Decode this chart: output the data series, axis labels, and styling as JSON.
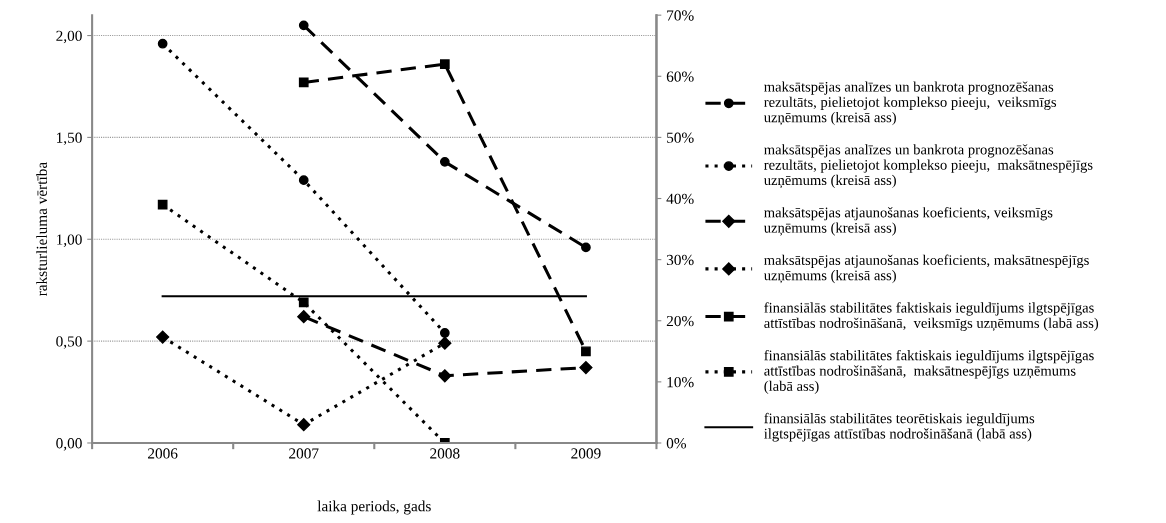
{
  "chart_data": {
    "type": "line",
    "xlabel": "laika periods, gads",
    "ylabel": "raksturlieluma vērtība",
    "categories": [
      "2006",
      "2007",
      "2008",
      "2009"
    ],
    "ylim": [
      0,
      2.1
    ],
    "yticks": [
      {
        "value": 0,
        "label": "0,00"
      },
      {
        "value": 0.5,
        "label": "0,50"
      },
      {
        "value": 1,
        "label": "1,00"
      },
      {
        "value": 1.5,
        "label": "1,50"
      },
      {
        "value": 2,
        "label": "2,00"
      }
    ],
    "y2lim": [
      0,
      70
    ],
    "y2ticks": [
      {
        "value": 0,
        "label": "0%"
      },
      {
        "value": 10,
        "label": "10%"
      },
      {
        "value": 20,
        "label": "20%"
      },
      {
        "value": 30,
        "label": "30%"
      },
      {
        "value": 40,
        "label": "40%"
      },
      {
        "value": 50,
        "label": "50%"
      },
      {
        "value": 60,
        "label": "60%"
      },
      {
        "value": 70,
        "label": "70%"
      }
    ],
    "grid": "y",
    "legend": "right",
    "series": [
      {
        "name": "maksātspējas analīzes un bankrota prognozēšanas\nrezultāts, pielietojot komplekso pieeju,  veiksmīgs\nuzņēmums (kreisā ass)",
        "color": "#000000",
        "marker": "circle",
        "line_style": "dashed",
        "values": [
          null,
          2.05,
          1.38,
          0.96
        ]
      },
      {
        "name": "maksātspējas analīzes un bankrota prognozēšanas\nrezultāts, pielietojot komplekso pieeju,  maksātnespējīgs\nuzņēmums (kreisā ass)",
        "color": "#000000",
        "marker": "circle",
        "line_style": "dotted",
        "values": [
          1.96,
          1.29,
          0.54,
          null
        ]
      },
      {
        "name": "maksātspējas atjaunošanas koeficients, veiksmīgs\nuzņēmums (kreisā ass)",
        "color": "#000000",
        "marker": "diamond",
        "line_style": "dashed",
        "values": [
          null,
          0.62,
          0.33,
          0.37
        ]
      },
      {
        "name": "maksātspējas atjaunošanas koeficients, maksātnespējīgs\nuzņēmums (kreisā ass)",
        "color": "#000000",
        "marker": "diamond",
        "line_style": "dotted",
        "values": [
          0.52,
          0.09,
          0.49,
          null
        ]
      },
      {
        "name": "finansiālās stabilitātes faktiskais ieguldījums ilgtspējīgas\nattīstības nodrošināšanā,  veiksmīgs uzņēmums (labā ass)",
        "color": "#000000",
        "marker": "square",
        "line_style": "dashed",
        "axis": "y2",
        "values": [
          null,
          59,
          62,
          15
        ]
      },
      {
        "name": "finansiālās stabilitātes faktiskais ieguldījums ilgtspējīgas\nattīstības nodrošināšanā,  maksātnespējīgs uzņēmums\n(labā ass)",
        "color": "#000000",
        "marker": "square",
        "line_style": "dotted",
        "axis": "y2",
        "values": [
          39,
          23,
          0,
          null
        ]
      },
      {
        "name": "finansiālās stabilitātes teorētiskais ieguldījums\nilgtspējīgas attīstības nodrošināšanā (labā ass)",
        "color": "#000000",
        "marker": "none",
        "line_style": "solid",
        "axis": "y2",
        "values": [
          24,
          24,
          24,
          24
        ]
      }
    ]
  }
}
